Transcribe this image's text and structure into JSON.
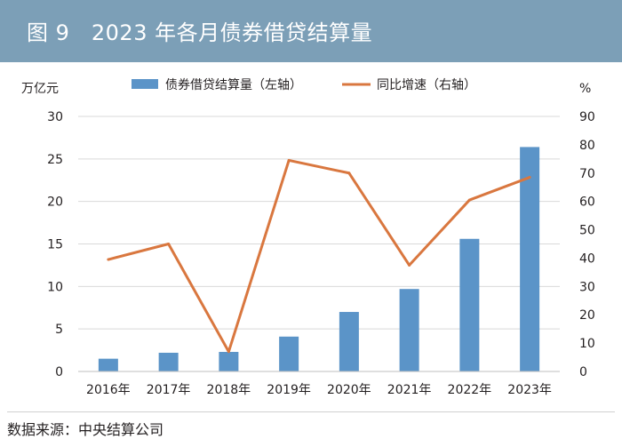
{
  "header": {
    "title": "图 9　2023 年各月债券借贷结算量"
  },
  "source": "数据来源：中央结算公司",
  "colors": {
    "header_bg": "#7c9fb7",
    "bar": "#5b94c8",
    "line": "#d9773f",
    "grid": "#d9d9d9"
  },
  "chart_data": {
    "type": "bar",
    "categories": [
      "2016年",
      "2017年",
      "2018年",
      "2019年",
      "2020年",
      "2021年",
      "2022年",
      "2023年"
    ],
    "series": [
      {
        "name": "债券借贷结算量（左轴）",
        "type": "bar",
        "axis": "left",
        "values": [
          1.5,
          2.2,
          2.3,
          4.1,
          7.0,
          9.7,
          15.6,
          26.4
        ]
      },
      {
        "name": "同比增速（右轴）",
        "type": "line",
        "axis": "right",
        "values": [
          39.5,
          45,
          7,
          74.5,
          70,
          37.5,
          60.5,
          68.5
        ]
      }
    ],
    "left_axis": {
      "unit": "万亿元",
      "ylim": [
        0,
        30
      ],
      "ticks": [
        "0",
        "5",
        "10",
        "15",
        "20",
        "25",
        "30"
      ]
    },
    "right_axis": {
      "unit": "%",
      "ylim": [
        0,
        90
      ],
      "ticks": [
        "0",
        "10",
        "20",
        "30",
        "40",
        "50",
        "60",
        "70",
        "80",
        "90"
      ]
    },
    "grid": true,
    "legend_position": "top-center"
  }
}
